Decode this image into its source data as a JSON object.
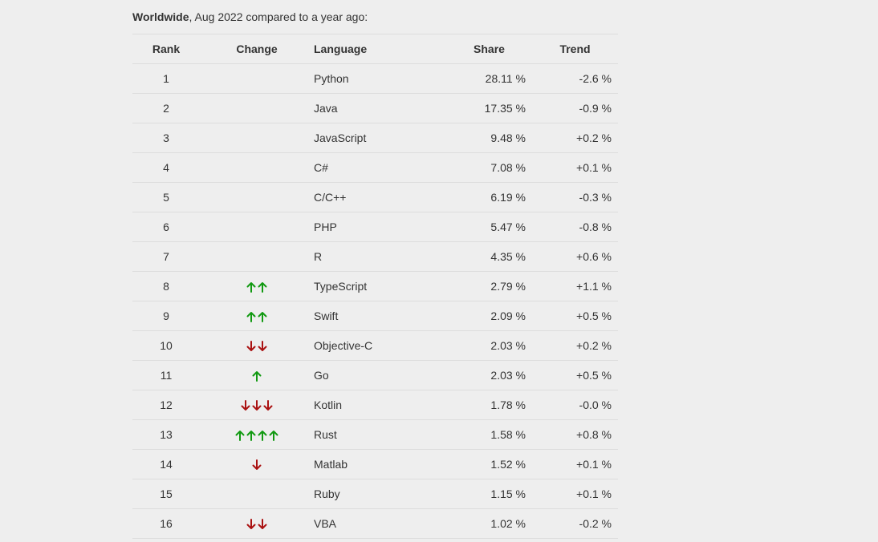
{
  "caption": {
    "region": "Worldwide",
    "rest": ", Aug 2022 compared to a year ago:"
  },
  "colors": {
    "up": "#119911",
    "down": "#aa1111"
  },
  "table": {
    "headers": {
      "rank": "Rank",
      "change": "Change",
      "language": "Language",
      "share": "Share",
      "trend": "Trend"
    },
    "rows": [
      {
        "rank": "1",
        "change": {
          "dir": "none",
          "count": 0
        },
        "language": "Python",
        "share": "28.11 %",
        "trend": "-2.6 %"
      },
      {
        "rank": "2",
        "change": {
          "dir": "none",
          "count": 0
        },
        "language": "Java",
        "share": "17.35 %",
        "trend": "-0.9 %"
      },
      {
        "rank": "3",
        "change": {
          "dir": "none",
          "count": 0
        },
        "language": "JavaScript",
        "share": "9.48 %",
        "trend": "+0.2 %"
      },
      {
        "rank": "4",
        "change": {
          "dir": "none",
          "count": 0
        },
        "language": "C#",
        "share": "7.08 %",
        "trend": "+0.1 %"
      },
      {
        "rank": "5",
        "change": {
          "dir": "none",
          "count": 0
        },
        "language": "C/C++",
        "share": "6.19 %",
        "trend": "-0.3 %"
      },
      {
        "rank": "6",
        "change": {
          "dir": "none",
          "count": 0
        },
        "language": "PHP",
        "share": "5.47 %",
        "trend": "-0.8 %"
      },
      {
        "rank": "7",
        "change": {
          "dir": "none",
          "count": 0
        },
        "language": "R",
        "share": "4.35 %",
        "trend": "+0.6 %"
      },
      {
        "rank": "8",
        "change": {
          "dir": "up",
          "count": 2
        },
        "language": "TypeScript",
        "share": "2.79 %",
        "trend": "+1.1 %"
      },
      {
        "rank": "9",
        "change": {
          "dir": "up",
          "count": 2
        },
        "language": "Swift",
        "share": "2.09 %",
        "trend": "+0.5 %"
      },
      {
        "rank": "10",
        "change": {
          "dir": "down",
          "count": 2
        },
        "language": "Objective-C",
        "share": "2.03 %",
        "trend": "+0.2 %"
      },
      {
        "rank": "11",
        "change": {
          "dir": "up",
          "count": 1
        },
        "language": "Go",
        "share": "2.03 %",
        "trend": "+0.5 %"
      },
      {
        "rank": "12",
        "change": {
          "dir": "down",
          "count": 3
        },
        "language": "Kotlin",
        "share": "1.78 %",
        "trend": "-0.0 %"
      },
      {
        "rank": "13",
        "change": {
          "dir": "up",
          "count": 4
        },
        "language": "Rust",
        "share": "1.58 %",
        "trend": "+0.8 %"
      },
      {
        "rank": "14",
        "change": {
          "dir": "down",
          "count": 1
        },
        "language": "Matlab",
        "share": "1.52 %",
        "trend": "+0.1 %"
      },
      {
        "rank": "15",
        "change": {
          "dir": "none",
          "count": 0
        },
        "language": "Ruby",
        "share": "1.15 %",
        "trend": "+0.1 %"
      },
      {
        "rank": "16",
        "change": {
          "dir": "down",
          "count": 2
        },
        "language": "VBA",
        "share": "1.02 %",
        "trend": "-0.2 %"
      }
    ]
  }
}
